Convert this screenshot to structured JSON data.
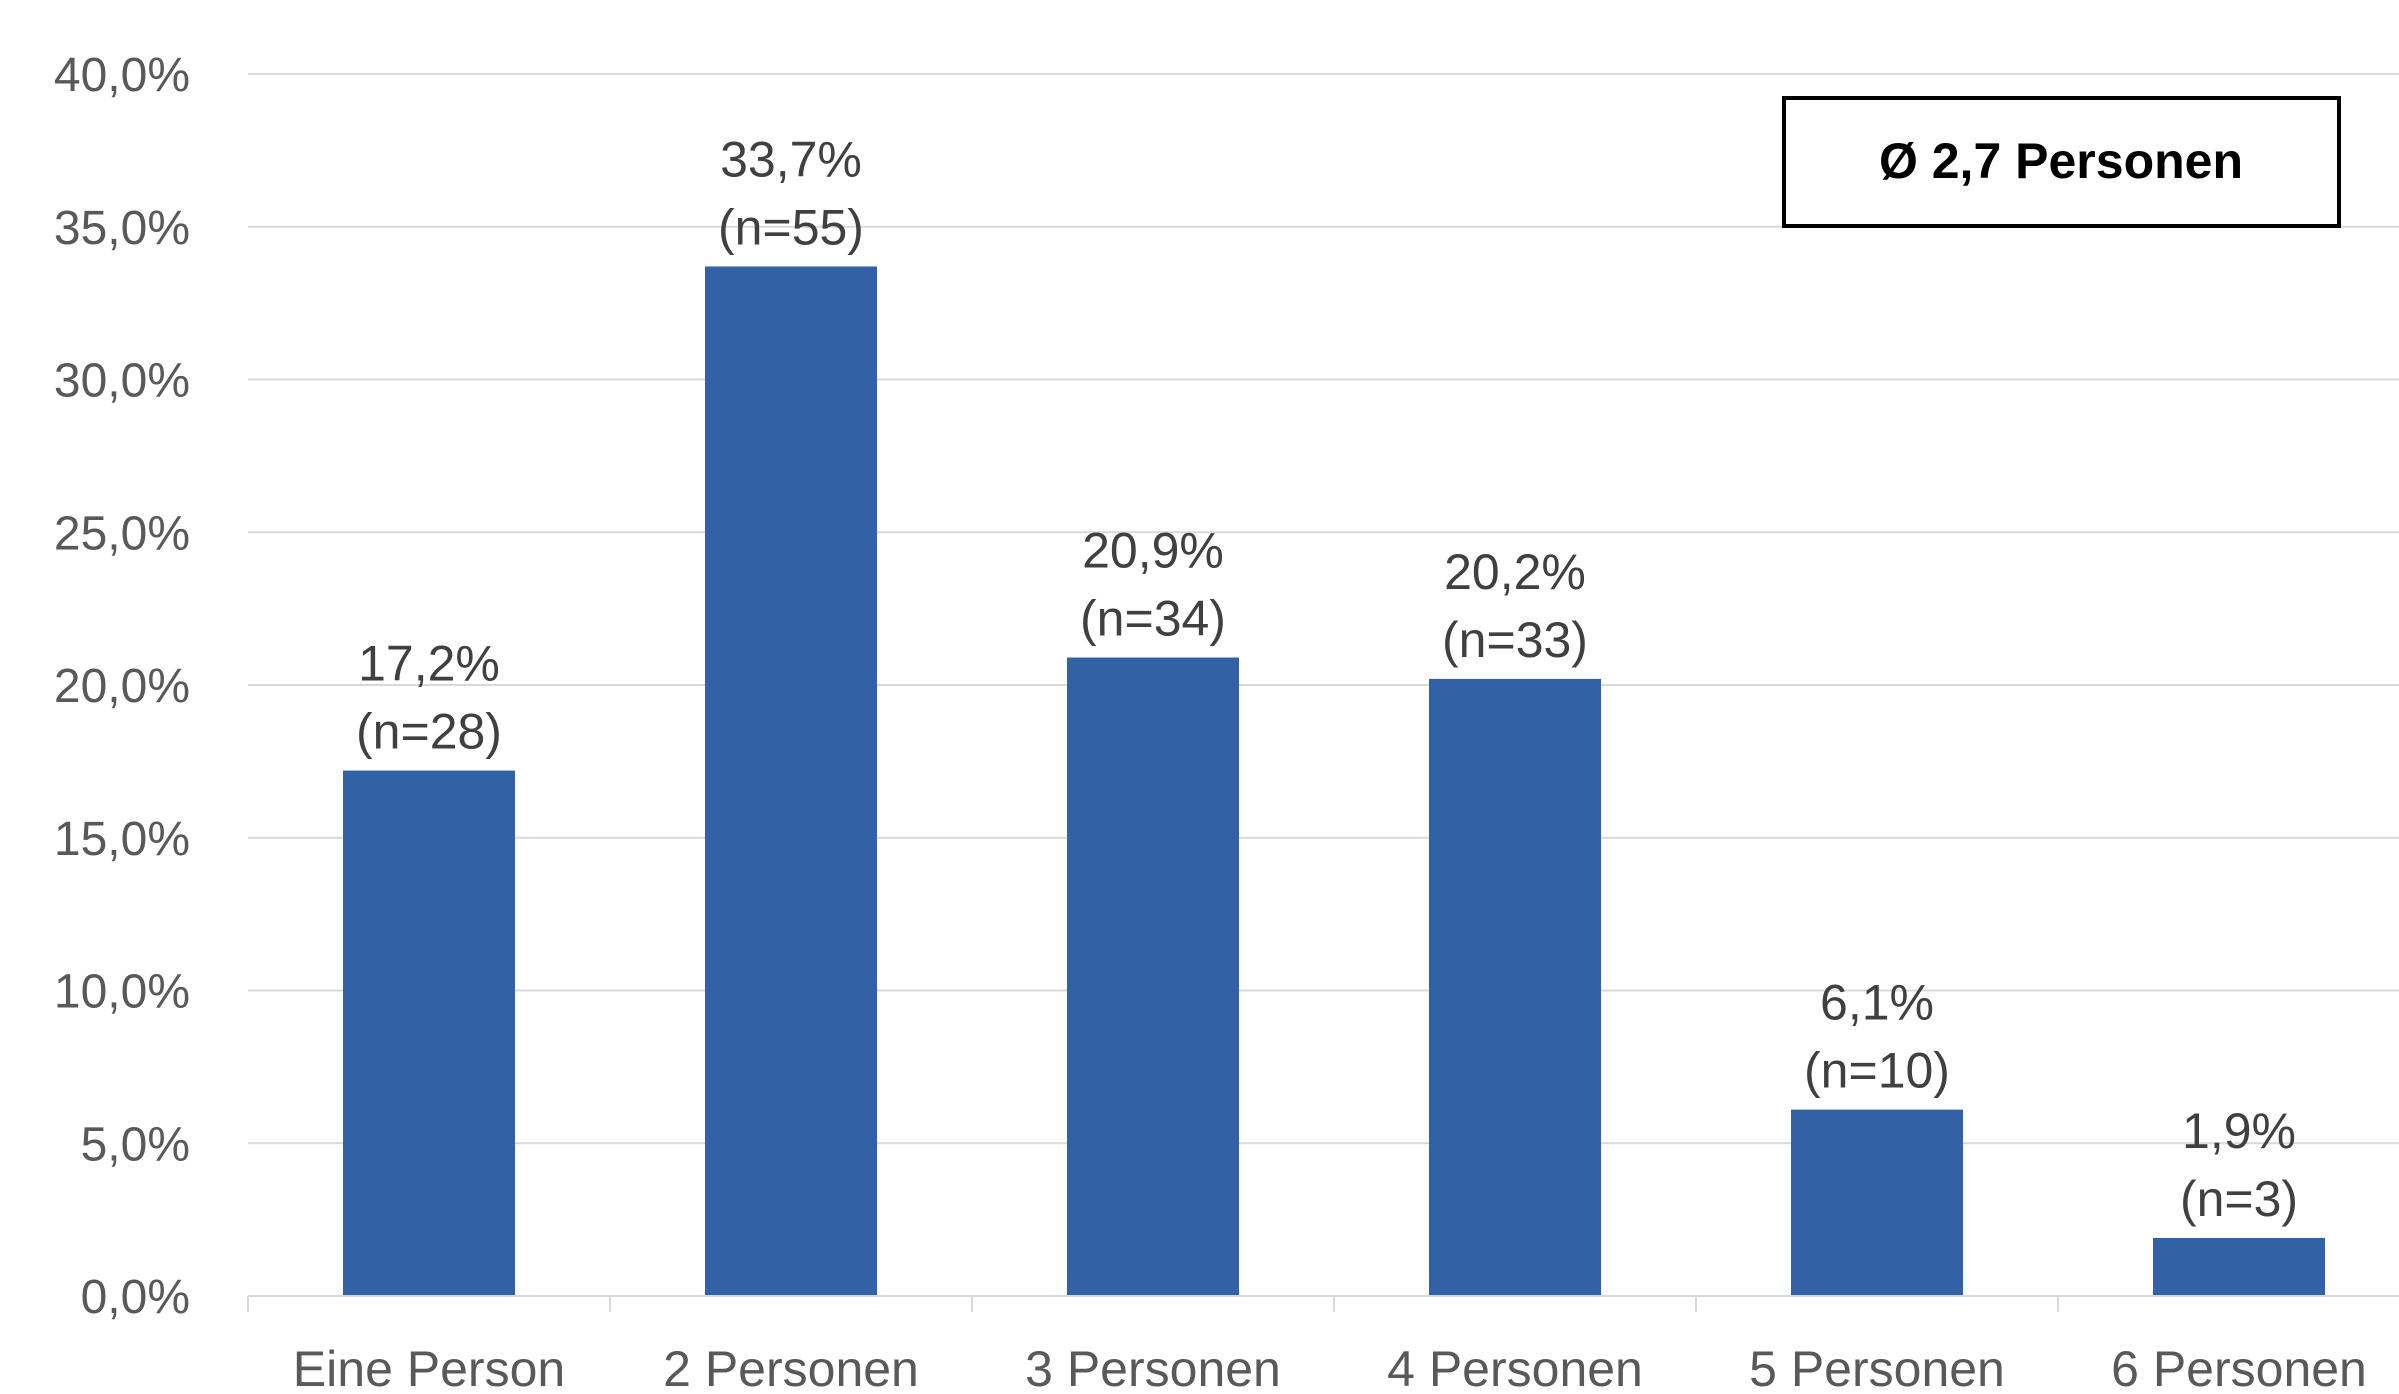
{
  "chart_data": {
    "type": "bar",
    "title": "",
    "xlabel": "",
    "ylabel": "",
    "ylim": [
      0,
      40
    ],
    "y_ticks": [
      "0,0%",
      "5,0%",
      "10,0%",
      "15,0%",
      "20,0%",
      "25,0%",
      "30,0%",
      "35,0%",
      "40,0%"
    ],
    "y_tick_values": [
      0,
      5,
      10,
      15,
      20,
      25,
      30,
      35,
      40
    ],
    "grid": true,
    "categories": [
      "Eine Person",
      "2 Personen",
      "3 Personen",
      "4 Personen",
      "5 Personen",
      "6 Personen"
    ],
    "values": [
      17.2,
      33.7,
      20.9,
      20.2,
      6.1,
      1.9
    ],
    "value_labels": [
      "17,2%",
      "33,7%",
      "20,9%",
      "20,2%",
      "6,1%",
      "1,9%"
    ],
    "count_labels": [
      "(n=28)",
      "(n=55)",
      "(n=34)",
      "(n=33)",
      "(n=10)",
      "(n=3)"
    ],
    "bar_color": "#3261a5",
    "annotation": "Ø 2,7 Personen"
  }
}
